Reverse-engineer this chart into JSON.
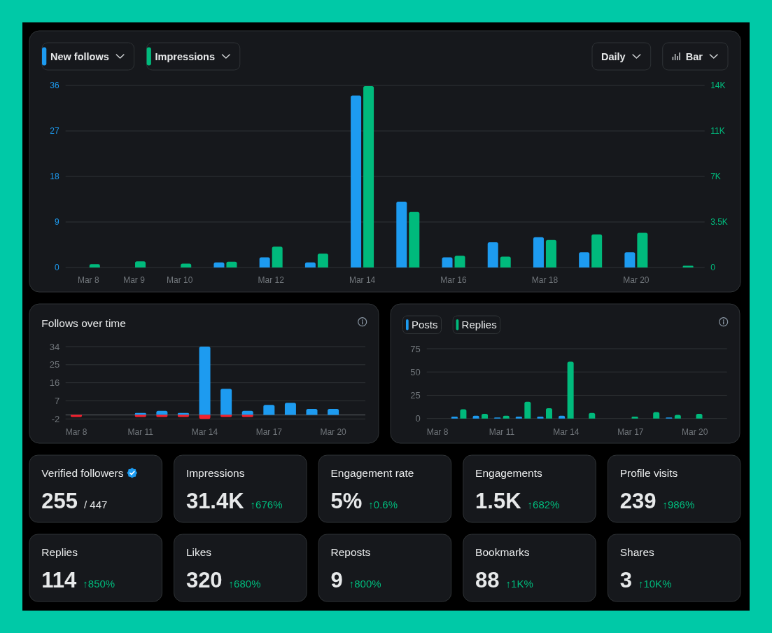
{
  "chart_data": [
    {
      "type": "bar",
      "categories": [
        "Mar 8",
        "Mar 9",
        "Mar 10",
        null,
        "Mar 12",
        null,
        "Mar 14",
        null,
        "Mar 16",
        null,
        "Mar 18",
        null,
        "Mar 20",
        null
      ],
      "series": [
        {
          "name": "New follows",
          "color": "#1d9bf0",
          "values": [
            null,
            null,
            null,
            1,
            2,
            1,
            34,
            13,
            2,
            5,
            6,
            3,
            3,
            null
          ]
        },
        {
          "name": "Impressions",
          "color": "#00ba7c",
          "axis": "y2",
          "values": [
            250,
            470,
            300,
            450,
            1600,
            1060,
            13950,
            4270,
            900,
            840,
            2120,
            2550,
            2660,
            130
          ]
        }
      ],
      "ylim": [
        0,
        36
      ],
      "yticks": [
        0,
        9,
        18,
        27,
        36
      ],
      "y2lim": [
        0,
        14000
      ],
      "y2ticks": [
        0,
        {
          "value": 3500,
          "label": "3.5K"
        },
        {
          "value": 7000,
          "label": "7K"
        },
        {
          "value": 10500,
          "label": "11K"
        },
        {
          "value": 14000,
          "label": "14K"
        }
      ],
      "grid": "y",
      "legend": "top left",
      "annotations": [
        "Daily",
        "Bar"
      ]
    },
    {
      "type": "bar",
      "title": "Follows over time",
      "stacked": true,
      "categories": [
        "Mar 8",
        null,
        null,
        "Mar 11",
        null,
        null,
        "Mar 14",
        null,
        null,
        "Mar 17",
        null,
        null,
        "Mar 20",
        null
      ],
      "series": [
        {
          "color": "#1d9bf0",
          "values": [
            null,
            null,
            null,
            1,
            2,
            1,
            34,
            13,
            2,
            5,
            6,
            3,
            3,
            null
          ]
        },
        {
          "color": "#f4212e",
          "values": [
            -1,
            null,
            null,
            -1,
            -1,
            -1,
            -2,
            -1,
            -1,
            null,
            null,
            null,
            null,
            null
          ]
        }
      ],
      "ylim": [
        -2,
        34
      ],
      "yticks": [
        -2,
        7,
        16,
        25,
        34
      ],
      "grid": "y"
    },
    {
      "type": "bar",
      "categories": [
        "Mar 8",
        null,
        null,
        "Mar 11",
        null,
        null,
        "Mar 14",
        null,
        null,
        "Mar 17",
        null,
        null,
        "Mar 20",
        null
      ],
      "series": [
        {
          "name": "Posts",
          "color": "#1d9bf0",
          "values": [
            null,
            2,
            3,
            1,
            2,
            2,
            3,
            null,
            null,
            null,
            null,
            1,
            null,
            null
          ]
        },
        {
          "name": "Replies",
          "color": "#00ba7c",
          "values": [
            null,
            10,
            5,
            3,
            18,
            11,
            61,
            6,
            null,
            2,
            7,
            4,
            5,
            null
          ]
        }
      ],
      "ylim": [
        0,
        75
      ],
      "yticks": [
        0,
        25,
        50,
        75
      ],
      "grid": "y",
      "legend": "top left"
    },
    {
      "type": "other",
      "categories": [
        "Verified followers",
        "Impressions",
        "Engagement rate",
        "Engagements",
        "Profile visits",
        "Replies",
        "Likes",
        "Reposts",
        "Bookmarks",
        "Shares"
      ],
      "value_labels": [
        "255",
        "31.4K",
        "5%",
        "1.5K",
        "239",
        "114",
        "320",
        "9",
        "88",
        "3"
      ],
      "annotations": [
        "/ 447",
        "↑676%",
        "↑0.6%",
        "↑682%",
        "↑986%",
        "↑850%",
        "↑680%",
        "↑800%",
        "↑1K%",
        "↑10K%"
      ]
    }
  ]
}
